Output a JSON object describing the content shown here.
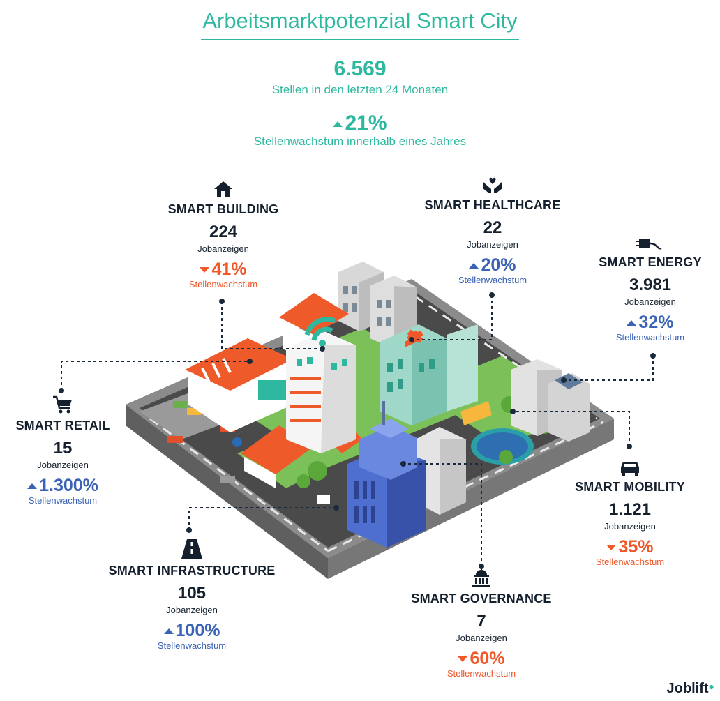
{
  "title": "Arbeitsmarktpotenzial Smart City",
  "summary": {
    "total_value": "6.569",
    "total_label": "Stellen in den letzten 24 Monaten",
    "growth_value": "21%",
    "growth_label": "Stellenwachstum innerhalb eines Jahres"
  },
  "categories": {
    "building": {
      "name": "SMART BUILDING",
      "count": "224",
      "unit": "Jobanzeigen",
      "pct": "41%",
      "pct_label": "Stellenwachstum",
      "icon": "house-icon"
    },
    "healthcare": {
      "name": "SMART HEALTHCARE",
      "count": "22",
      "unit": "Jobanzeigen",
      "pct": "20%",
      "pct_label": "Stellenwachstum",
      "icon": "heart-hands-icon"
    },
    "energy": {
      "name": "SMART ENERGY",
      "count": "3.981",
      "unit": "Jobanzeigen",
      "pct": "32%",
      "pct_label": "Stellenwachstum",
      "icon": "plug-icon"
    },
    "retail": {
      "name": "SMART RETAIL",
      "count": "15",
      "unit": "Jobanzeigen",
      "pct": "1.300%",
      "pct_label": "Stellenwachstum",
      "icon": "cart-icon"
    },
    "mobility": {
      "name": "SMART MOBILITY",
      "count": "1.121",
      "unit": "Jobanzeigen",
      "pct": "35%",
      "pct_label": "Stellenwachstum",
      "icon": "car-icon"
    },
    "infrastructure": {
      "name": "SMART INFRASTRUCTURE",
      "count": "105",
      "unit": "Jobanzeigen",
      "pct": "100%",
      "pct_label": "Stellenwachstum",
      "icon": "road-icon"
    },
    "governance": {
      "name": "SMART GOVERNANCE",
      "count": "7",
      "unit": "Jobanzeigen",
      "pct": "60%",
      "pct_label": "Stellenwachstum",
      "icon": "government-building-icon"
    }
  },
  "colors": {
    "teal": "#2fb8a0",
    "up": "#3a62b5",
    "down": "#f0582a",
    "dark": "#14202e"
  },
  "logo": "Joblift"
}
